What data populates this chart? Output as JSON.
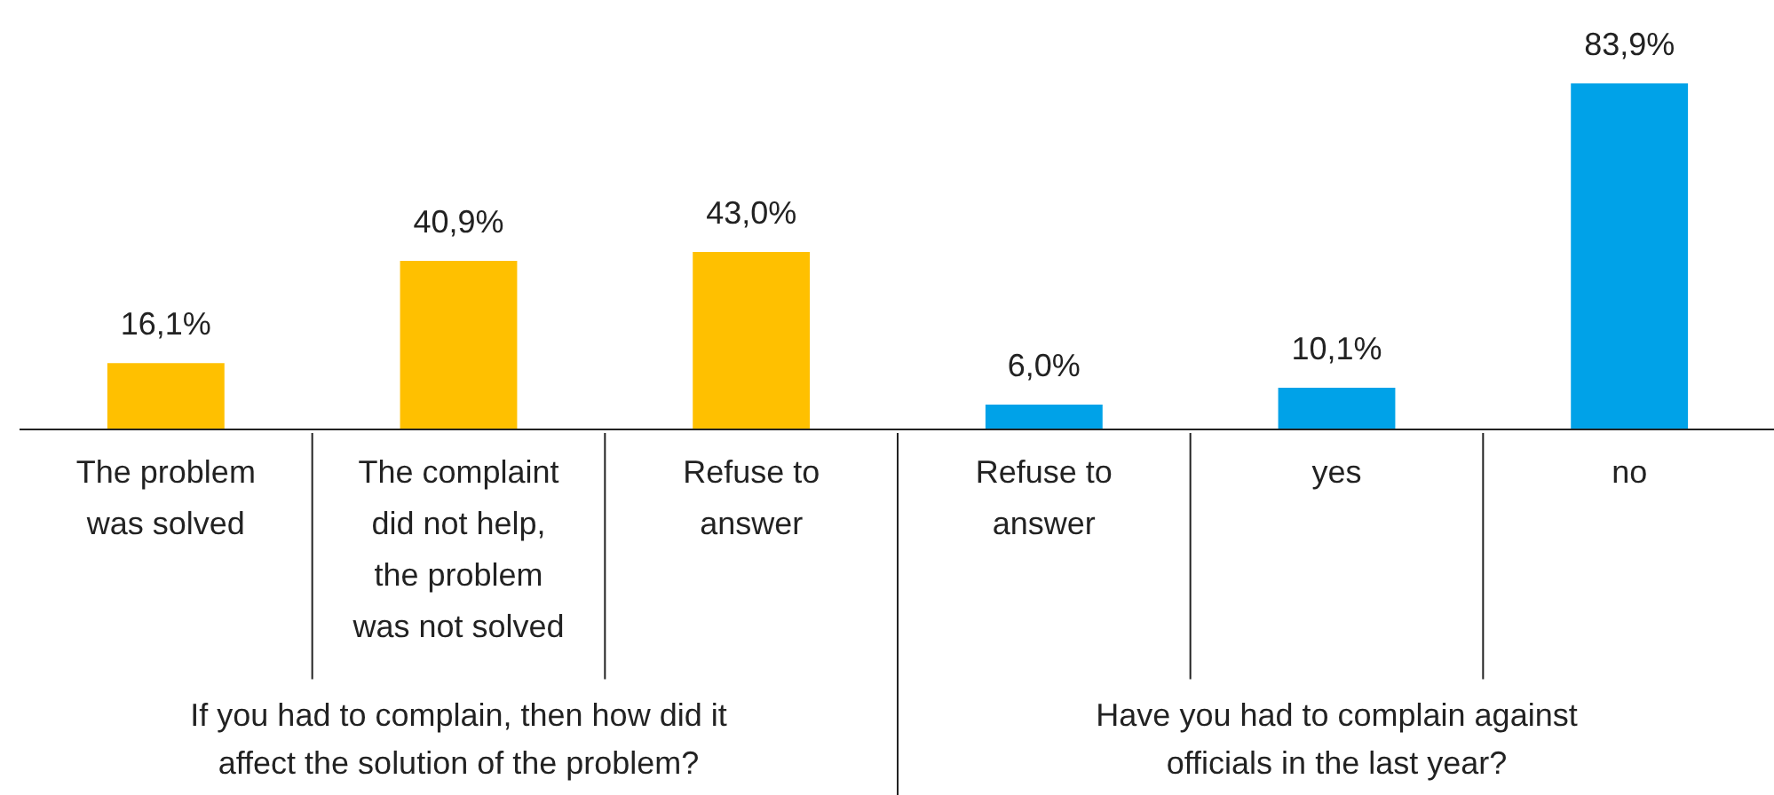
{
  "chart_data": {
    "type": "bar",
    "categories": [
      "The problem was solved",
      "The complaint did not help, the problem was not solved",
      "Refuse to answer",
      "Refuse to answer",
      "yes",
      "no"
    ],
    "values": [
      16.1,
      40.9,
      43.0,
      6.0,
      10.1,
      83.9
    ],
    "colors": [
      "#ffc000",
      "#ffc000",
      "#ffc000",
      "#00a2e8",
      "#00a2e8",
      "#00a2e8"
    ],
    "value_labels": [
      "16,1%",
      "40,9%",
      "43,0%",
      "6,0%",
      "10,1%",
      "83,9%"
    ],
    "annotations": [
      "If you had to complain, then how did it affect the solution of the problem?",
      "Have you had to complain against officials in the last year?"
    ]
  }
}
